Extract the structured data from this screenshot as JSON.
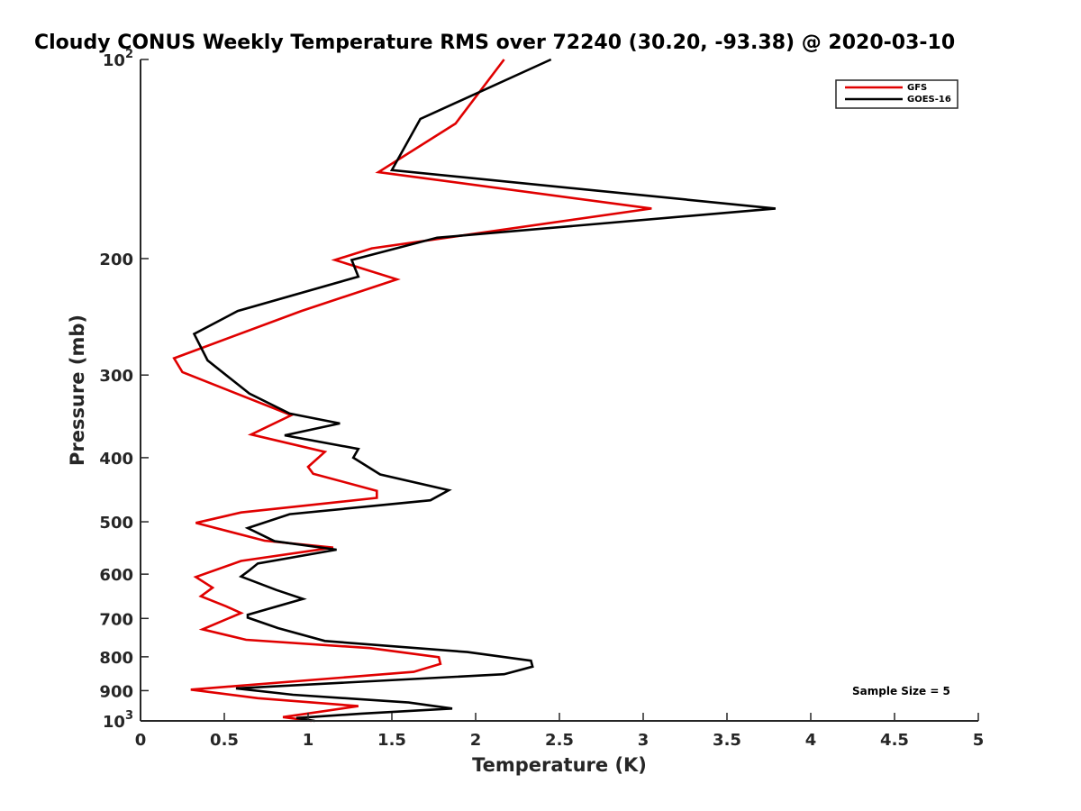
{
  "chart_data": {
    "type": "line",
    "title": "Cloudy CONUS Weekly Temperature RMS over 72240 (30.20, -93.38) @ 2020-03-10",
    "xlabel": "Temperature (K)",
    "ylabel": "Pressure (mb)",
    "xlim": [
      0,
      5
    ],
    "ylim": [
      100,
      1000
    ],
    "y_scale": "log",
    "y_reversed": true,
    "x_ticks": [
      "0",
      "0.5",
      "1",
      "1.5",
      "2",
      "2.5",
      "3",
      "3.5",
      "4",
      "4.5",
      "5"
    ],
    "y_ticks": [
      {
        "value": 100,
        "base": "10",
        "exp": "2"
      },
      {
        "value": 200,
        "label": "200"
      },
      {
        "value": 300,
        "label": "300"
      },
      {
        "value": 400,
        "label": "400"
      },
      {
        "value": 500,
        "label": "500"
      },
      {
        "value": 600,
        "label": "600"
      },
      {
        "value": 700,
        "label": "700"
      },
      {
        "value": 800,
        "label": "800"
      },
      {
        "value": 900,
        "label": "900"
      },
      {
        "value": 1000,
        "base": "10",
        "exp": "3"
      }
    ],
    "grid": false,
    "legend_position": "top-right",
    "annotation": "Sample Size = 5",
    "series": [
      {
        "name": "GFS",
        "color": "#e00000",
        "points": [
          [
            2.17,
            100
          ],
          [
            1.88,
            125
          ],
          [
            1.42,
            148
          ],
          [
            3.05,
            168
          ],
          [
            1.38,
            193
          ],
          [
            1.16,
            201
          ],
          [
            1.53,
            215
          ],
          [
            0.96,
            240
          ],
          [
            0.2,
            283
          ],
          [
            0.25,
            297
          ],
          [
            0.9,
            345
          ],
          [
            0.66,
            369
          ],
          [
            1.1,
            392
          ],
          [
            1.0,
            413
          ],
          [
            1.03,
            423
          ],
          [
            1.41,
            449
          ],
          [
            1.41,
            460
          ],
          [
            0.6,
            484
          ],
          [
            0.33,
            502
          ],
          [
            0.74,
            534
          ],
          [
            1.15,
            547
          ],
          [
            0.6,
            573
          ],
          [
            0.33,
            606
          ],
          [
            0.43,
            629
          ],
          [
            0.36,
            648
          ],
          [
            0.51,
            671
          ],
          [
            0.6,
            687
          ],
          [
            0.37,
            727
          ],
          [
            0.63,
            754
          ],
          [
            1.37,
            776
          ],
          [
            1.78,
            801
          ],
          [
            1.79,
            820
          ],
          [
            1.63,
            843
          ],
          [
            0.3,
            897
          ],
          [
            0.7,
            924
          ],
          [
            1.3,
            950
          ],
          [
            0.85,
            987
          ],
          [
            1.02,
            1000
          ]
        ]
      },
      {
        "name": "GOES-16",
        "color": "#000000",
        "points": [
          [
            2.45,
            100
          ],
          [
            1.67,
            123
          ],
          [
            1.5,
            147
          ],
          [
            3.79,
            168
          ],
          [
            1.77,
            186
          ],
          [
            1.26,
            201
          ],
          [
            1.3,
            213
          ],
          [
            0.58,
            240
          ],
          [
            0.32,
            260
          ],
          [
            0.4,
            285
          ],
          [
            0.65,
            320
          ],
          [
            0.89,
            343
          ],
          [
            1.19,
            355
          ],
          [
            0.86,
            370
          ],
          [
            1.3,
            388
          ],
          [
            1.27,
            400
          ],
          [
            1.43,
            424
          ],
          [
            1.84,
            448
          ],
          [
            1.73,
            464
          ],
          [
            0.89,
            487
          ],
          [
            0.64,
            511
          ],
          [
            0.8,
            535
          ],
          [
            1.17,
            551
          ],
          [
            0.7,
            578
          ],
          [
            0.65,
            592
          ],
          [
            0.6,
            605
          ],
          [
            0.81,
            634
          ],
          [
            0.97,
            654
          ],
          [
            0.64,
            691
          ],
          [
            0.64,
            698
          ],
          [
            0.82,
            724
          ],
          [
            1.1,
            757
          ],
          [
            1.95,
            787
          ],
          [
            2.33,
            811
          ],
          [
            2.34,
            828
          ],
          [
            2.17,
            850
          ],
          [
            0.57,
            893
          ],
          [
            0.91,
            913
          ],
          [
            1.6,
            938
          ],
          [
            1.86,
            958
          ],
          [
            1.32,
            975
          ],
          [
            0.93,
            990
          ],
          [
            1.04,
            1000
          ]
        ]
      }
    ]
  }
}
